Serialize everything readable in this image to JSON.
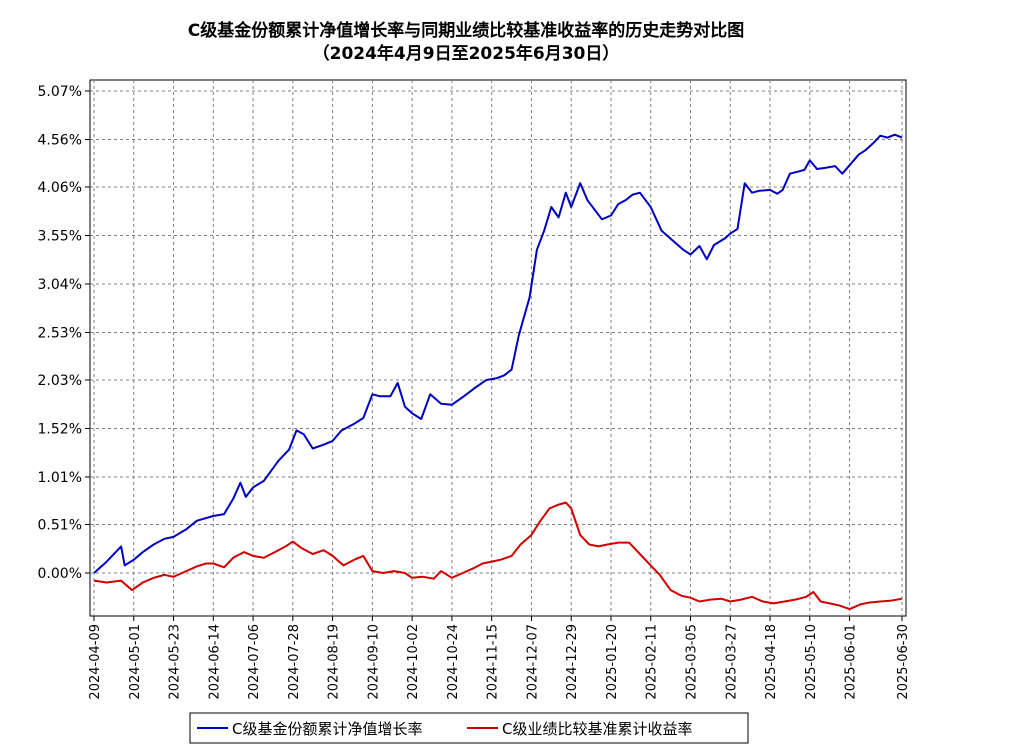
{
  "chart_data": {
    "type": "line",
    "title": "C级基金份额累计净值增长率与同期业绩比较基准收益率的历史走势对比图",
    "subtitle": "（2024年4月9日至2025年6月30日）",
    "y_tick_labels": [
      "5.07%",
      "4.56%",
      "4.06%",
      "3.55%",
      "3.04%",
      "2.53%",
      "2.03%",
      "1.52%",
      "1.01%",
      "0.51%",
      "0.00%"
    ],
    "y_ticks": [
      5.07,
      4.56,
      4.06,
      3.55,
      3.04,
      2.53,
      2.03,
      1.52,
      1.01,
      0.51,
      0.0
    ],
    "ylim": [
      -0.45,
      5.07
    ],
    "x_tick_labels": [
      "2024-04-09",
      "2024-05-01",
      "2024-05-23",
      "2024-06-14",
      "2024-07-06",
      "2024-07-28",
      "2024-08-19",
      "2024-09-10",
      "2024-10-02",
      "2024-10-24",
      "2024-11-15",
      "2024-12-07",
      "2024-12-29",
      "2025-01-20",
      "2025-02-11",
      "2025-03-05",
      "2025-03-27",
      "2025-04-18",
      "2025-05-10",
      "2025-06-01",
      "2025-06-30"
    ],
    "grid": true,
    "legend_position": "bottom",
    "series": [
      {
        "name": "C级基金份额累计净值增长率",
        "color": "#0000c0",
        "x": [
          "2024-04-09",
          "2024-04-16",
          "2024-04-24",
          "2024-04-26",
          "2024-05-01",
          "2024-05-06",
          "2024-05-12",
          "2024-05-18",
          "2024-05-23",
          "2024-05-30",
          "2024-06-05",
          "2024-06-14",
          "2024-06-20",
          "2024-06-25",
          "2024-06-29",
          "2024-07-02",
          "2024-07-06",
          "2024-07-12",
          "2024-07-20",
          "2024-07-26",
          "2024-07-30",
          "2024-08-03",
          "2024-08-08",
          "2024-08-14",
          "2024-08-19",
          "2024-08-24",
          "2024-08-31",
          "2024-09-05",
          "2024-09-10",
          "2024-09-14",
          "2024-09-20",
          "2024-09-24",
          "2024-09-28",
          "2024-10-02",
          "2024-10-07",
          "2024-10-12",
          "2024-10-18",
          "2024-10-24",
          "2024-10-30",
          "2024-11-06",
          "2024-11-12",
          "2024-11-18",
          "2024-11-22",
          "2024-11-26",
          "2024-11-30",
          "2024-12-03",
          "2024-12-06",
          "2024-12-10",
          "2024-12-14",
          "2024-12-18",
          "2024-12-22",
          "2024-12-26",
          "2024-12-29",
          "2025-01-03",
          "2025-01-07",
          "2025-01-11",
          "2025-01-15",
          "2025-01-20",
          "2025-01-24",
          "2025-01-28",
          "2025-02-01",
          "2025-02-05",
          "2025-02-11",
          "2025-02-17",
          "2025-02-23",
          "2025-03-01",
          "2025-03-05",
          "2025-03-10",
          "2025-03-14",
          "2025-03-18",
          "2025-03-24",
          "2025-03-27",
          "2025-03-31",
          "2025-04-04",
          "2025-04-08",
          "2025-04-12",
          "2025-04-18",
          "2025-04-22",
          "2025-04-25",
          "2025-04-29",
          "2025-05-03",
          "2025-05-07",
          "2025-05-10",
          "2025-05-14",
          "2025-05-18",
          "2025-05-24",
          "2025-05-28",
          "2025-06-01",
          "2025-06-06",
          "2025-06-10",
          "2025-06-14",
          "2025-06-18",
          "2025-06-22",
          "2025-06-26",
          "2025-06-30"
        ],
        "values": [
          0.0,
          0.12,
          0.28,
          0.08,
          0.14,
          0.22,
          0.3,
          0.36,
          0.38,
          0.46,
          0.55,
          0.6,
          0.62,
          0.78,
          0.95,
          0.8,
          0.9,
          0.97,
          1.18,
          1.3,
          1.5,
          1.46,
          1.31,
          1.35,
          1.39,
          1.5,
          1.57,
          1.63,
          1.88,
          1.86,
          1.86,
          2.0,
          1.75,
          1.68,
          1.62,
          1.88,
          1.78,
          1.77,
          1.85,
          1.95,
          2.03,
          2.05,
          2.08,
          2.14,
          2.5,
          2.7,
          2.9,
          3.4,
          3.6,
          3.85,
          3.74,
          4.0,
          3.85,
          4.1,
          3.92,
          3.82,
          3.72,
          3.76,
          3.88,
          3.92,
          3.98,
          4.0,
          3.85,
          3.6,
          3.5,
          3.4,
          3.35,
          3.44,
          3.3,
          3.45,
          3.52,
          3.57,
          3.62,
          4.1,
          4.0,
          4.02,
          4.03,
          3.99,
          4.03,
          4.2,
          4.22,
          4.24,
          4.34,
          4.25,
          4.26,
          4.28,
          4.2,
          4.29,
          4.4,
          4.45,
          4.52,
          4.6,
          4.58,
          4.61,
          4.58
        ]
      },
      {
        "name": "C级业绩比较基准累计收益率",
        "color": "#d00000",
        "x": [
          "2024-04-09",
          "2024-04-16",
          "2024-04-24",
          "2024-04-30",
          "2024-05-06",
          "2024-05-12",
          "2024-05-18",
          "2024-05-23",
          "2024-05-30",
          "2024-06-05",
          "2024-06-10",
          "2024-06-14",
          "2024-06-20",
          "2024-06-25",
          "2024-07-01",
          "2024-07-06",
          "2024-07-12",
          "2024-07-18",
          "2024-07-24",
          "2024-07-28",
          "2024-08-02",
          "2024-08-08",
          "2024-08-14",
          "2024-08-19",
          "2024-08-25",
          "2024-08-31",
          "2024-09-05",
          "2024-09-10",
          "2024-09-16",
          "2024-09-22",
          "2024-09-28",
          "2024-10-02",
          "2024-10-08",
          "2024-10-14",
          "2024-10-18",
          "2024-10-24",
          "2024-10-30",
          "2024-11-05",
          "2024-11-10",
          "2024-11-15",
          "2024-11-20",
          "2024-11-26",
          "2024-12-01",
          "2024-12-07",
          "2024-12-12",
          "2024-12-17",
          "2024-12-22",
          "2024-12-26",
          "2024-12-29",
          "2025-01-03",
          "2025-01-08",
          "2025-01-13",
          "2025-01-18",
          "2025-01-24",
          "2025-01-30",
          "2025-02-05",
          "2025-02-11",
          "2025-02-16",
          "2025-02-22",
          "2025-02-28",
          "2025-03-05",
          "2025-03-10",
          "2025-03-16",
          "2025-03-22",
          "2025-03-27",
          "2025-04-02",
          "2025-04-08",
          "2025-04-14",
          "2025-04-20",
          "2025-04-26",
          "2025-05-02",
          "2025-05-08",
          "2025-05-12",
          "2025-05-16",
          "2025-05-21",
          "2025-05-26",
          "2025-06-01",
          "2025-06-07",
          "2025-06-12",
          "2025-06-18",
          "2025-06-24",
          "2025-06-30"
        ],
        "values": [
          -0.08,
          -0.1,
          -0.08,
          -0.18,
          -0.1,
          -0.05,
          -0.02,
          -0.04,
          0.02,
          0.07,
          0.1,
          0.1,
          0.06,
          0.16,
          0.22,
          0.18,
          0.16,
          0.22,
          0.28,
          0.33,
          0.26,
          0.2,
          0.24,
          0.18,
          0.08,
          0.14,
          0.18,
          0.02,
          0.0,
          0.02,
          0.0,
          -0.05,
          -0.04,
          -0.06,
          0.02,
          -0.05,
          0.0,
          0.05,
          0.1,
          0.12,
          0.14,
          0.18,
          0.3,
          0.4,
          0.55,
          0.68,
          0.72,
          0.74,
          0.68,
          0.4,
          0.3,
          0.28,
          0.3,
          0.32,
          0.32,
          0.2,
          0.08,
          -0.02,
          -0.18,
          -0.24,
          -0.26,
          -0.3,
          -0.28,
          -0.27,
          -0.3,
          -0.28,
          -0.25,
          -0.3,
          -0.32,
          -0.3,
          -0.28,
          -0.25,
          -0.2,
          -0.3,
          -0.32,
          -0.34,
          -0.38,
          -0.33,
          -0.31,
          -0.3,
          -0.29,
          -0.27
        ]
      }
    ]
  }
}
